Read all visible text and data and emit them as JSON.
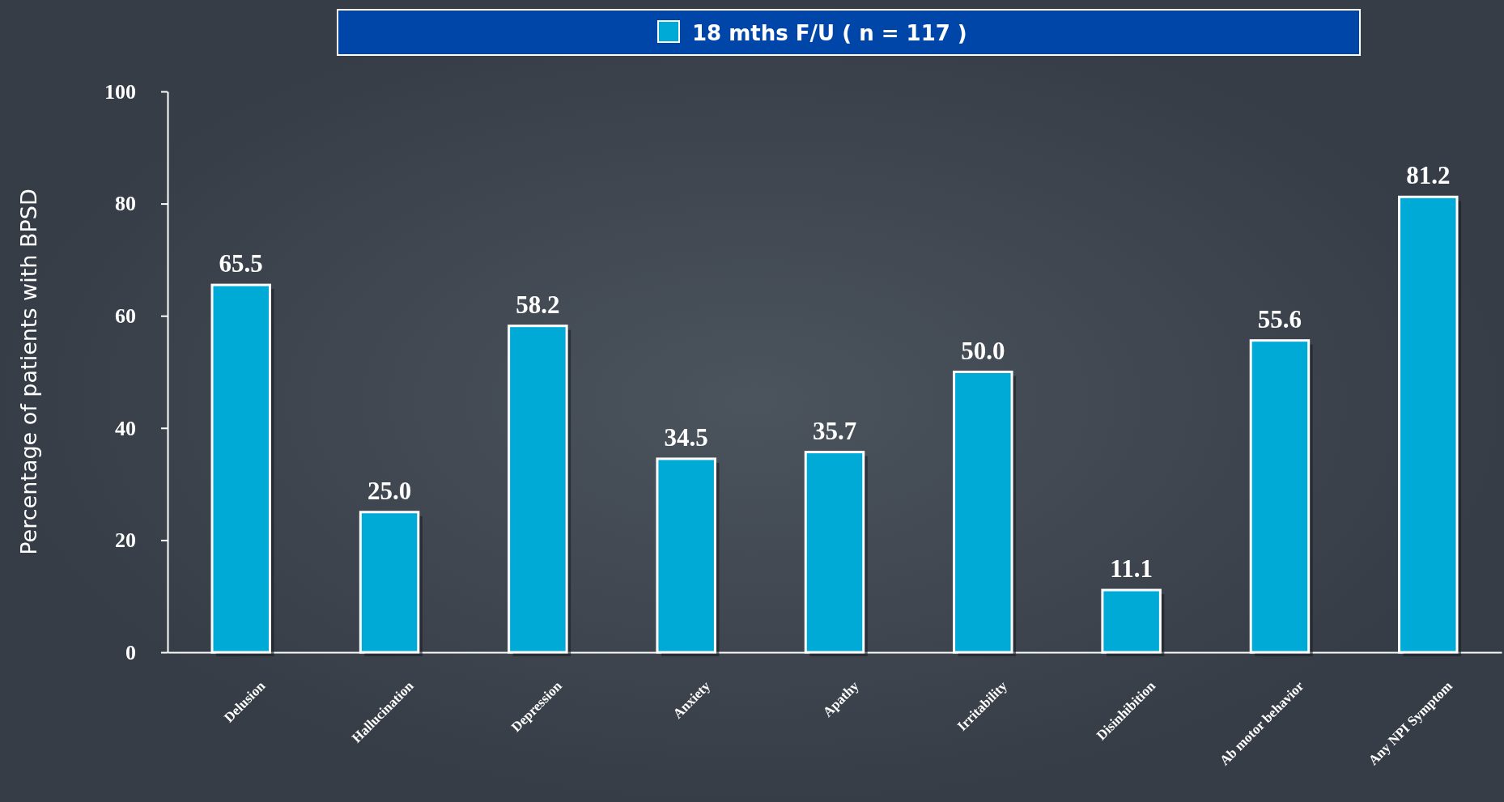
{
  "chart_data": {
    "type": "bar",
    "ylabel": "Percentage of patients with BPSD",
    "categories": [
      "Delusion",
      "Hallucination",
      "Depression",
      "Anxiety",
      "Apathy",
      "Irritability",
      "Disinhibition",
      "Ab motor behavior",
      "Any NPI Symptom"
    ],
    "series": [
      {
        "name": "18 mths F/U ( n = 117 )",
        "color": "#00aad6",
        "values": [
          65.5,
          25.0,
          58.2,
          34.5,
          35.7,
          50.0,
          11.1,
          55.6,
          81.2
        ],
        "value_labels": [
          "65.5",
          "25.0",
          "58.2",
          "34.5",
          "35.7",
          "50.0",
          "11.1",
          "55.6",
          "81.2"
        ]
      }
    ],
    "ylim": [
      0,
      100
    ],
    "yticks": [
      0,
      20,
      40,
      60,
      80,
      100
    ],
    "legend": "top",
    "grid": false
  }
}
